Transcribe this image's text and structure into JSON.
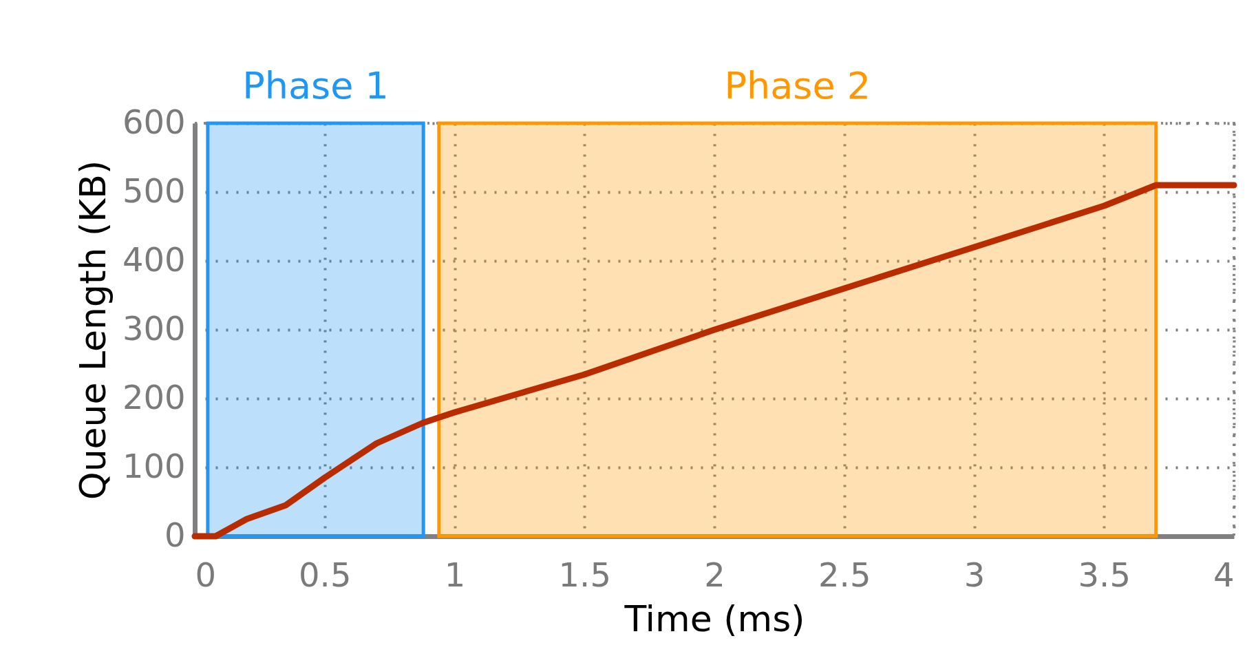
{
  "chart_data": {
    "type": "line",
    "xlabel": "Time (ms)",
    "ylabel": "Queue Length (KB)",
    "x": [
      0,
      0.08,
      0.2,
      0.35,
      0.5,
      0.6,
      0.7,
      0.88,
      1.0,
      1.5,
      2,
      2.5,
      3,
      3.5,
      3.7,
      4
    ],
    "series": [
      {
        "color": "#b82c00",
        "values": [
          0,
          0,
          25,
          45,
          85,
          110,
          135,
          165,
          180,
          235,
          300,
          360,
          420,
          480,
          510,
          510
        ]
      }
    ],
    "xlim": [
      0,
      4
    ],
    "xticks": [
      0,
      0.5,
      1,
      1.5,
      2,
      2.5,
      3,
      3.5,
      4
    ],
    "ylim": [
      0,
      600
    ],
    "yticks": [
      0,
      100,
      200,
      300,
      400,
      500,
      600
    ],
    "bands": [
      {
        "axis": "x",
        "from": 0.05,
        "to": 0.88,
        "label": "Phase 1",
        "color": "#2196f3"
      },
      {
        "axis": "x",
        "from": 0.94,
        "to": 3.7,
        "label": "Phase 2",
        "color": "#ff9800"
      }
    ],
    "grid": true,
    "legend": false,
    "marker": "none",
    "line_style": "solid"
  }
}
